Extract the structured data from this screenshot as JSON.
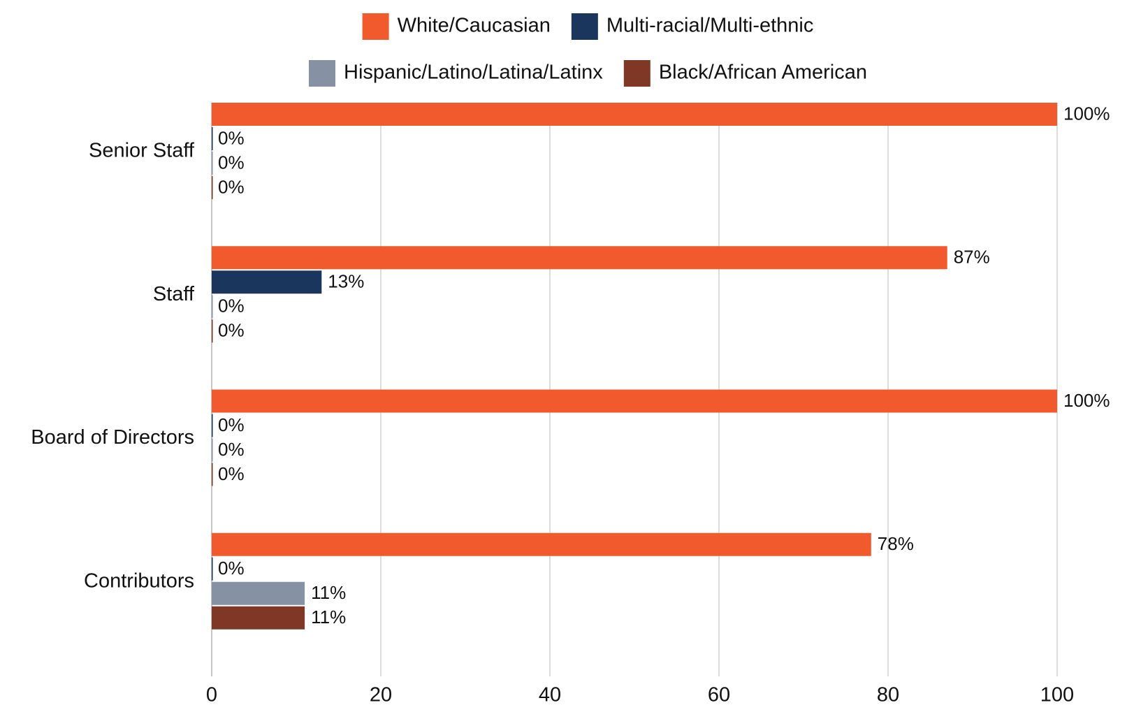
{
  "chart_data": {
    "type": "bar",
    "orientation": "horizontal",
    "categories": [
      "Senior Staff",
      "Staff",
      "Board of Directors",
      "Contributors"
    ],
    "series": [
      {
        "name": "White/Caucasian",
        "color": "#f05a2c",
        "values": [
          100,
          87,
          100,
          78
        ],
        "value_labels": [
          "100%",
          "87%",
          "100%",
          "78%"
        ]
      },
      {
        "name": "Multi-racial/Multi-ethnic",
        "color": "#1b365d",
        "values": [
          0,
          13,
          0,
          0
        ],
        "value_labels": [
          "0%",
          "13%",
          "0%",
          "0%"
        ]
      },
      {
        "name": "Hispanic/Latino/Latina/Latinx",
        "color": "#8691a3",
        "values": [
          0,
          0,
          0,
          11
        ],
        "value_labels": [
          "0%",
          "0%",
          "0%",
          "11%"
        ]
      },
      {
        "name": "Black/African American",
        "color": "#7f3826",
        "values": [
          0,
          0,
          0,
          11
        ],
        "value_labels": [
          "0%",
          "0%",
          "0%",
          "11%"
        ]
      }
    ],
    "xlim": [
      0,
      100
    ],
    "xticks": [
      0,
      20,
      40,
      60,
      80,
      100
    ],
    "grid": true,
    "legend": "top"
  }
}
